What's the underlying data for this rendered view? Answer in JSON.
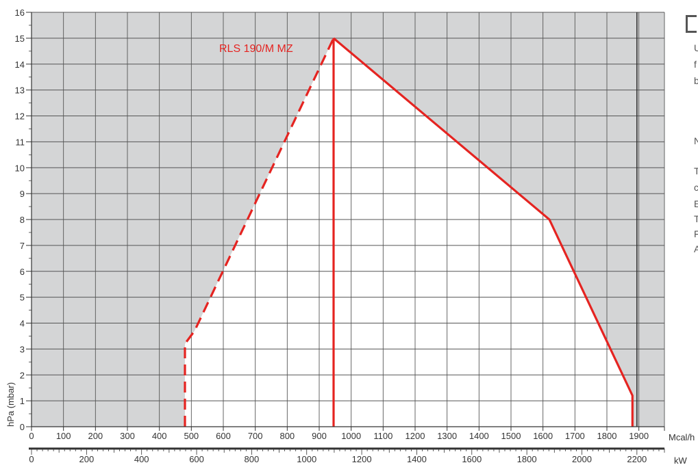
{
  "chart_data": {
    "type": "area",
    "title": "",
    "xlabel": "Mcal/h",
    "x2label": "kW",
    "ylabel": "hPa (mbar)",
    "xlim": [
      0,
      1980
    ],
    "x2lim": [
      0,
      2300
    ],
    "ylim": [
      0,
      16
    ],
    "x_ticks": [
      0,
      100,
      200,
      300,
      400,
      500,
      600,
      700,
      800,
      900,
      1000,
      1100,
      1200,
      1300,
      1400,
      1500,
      1600,
      1700,
      1800,
      1900
    ],
    "x2_ticks": [
      0,
      200,
      400,
      600,
      800,
      1000,
      1200,
      1400,
      1600,
      1800,
      2000,
      2200
    ],
    "y_ticks": [
      0,
      1,
      2,
      3,
      4,
      5,
      6,
      7,
      8,
      9,
      10,
      11,
      12,
      13,
      14,
      15,
      16
    ],
    "grid": true,
    "background_color": "#d4d5d6",
    "working_area_color": "#ffffff",
    "series": [
      {
        "name": "RLS 190/M MZ",
        "color": "#e52421",
        "dashed_segment": {
          "x": [
            480,
            480,
            510,
            945
          ],
          "y": [
            0,
            3.2,
            3.7,
            15
          ]
        },
        "solid_segment": {
          "x": [
            945,
            1620,
            1880,
            1880
          ],
          "y": [
            15,
            8,
            1.2,
            0
          ]
        },
        "vertical_line_x": 945
      }
    ],
    "annotations": [
      "RLS 190/M MZ"
    ]
  },
  "side_text": {
    "line1": "U",
    "line2": "f",
    "line3": "b",
    "line4": "N",
    "line5": "T",
    "line6": "c",
    "line7": "E",
    "line8": "T",
    "line9": "F",
    "line10": "A"
  }
}
